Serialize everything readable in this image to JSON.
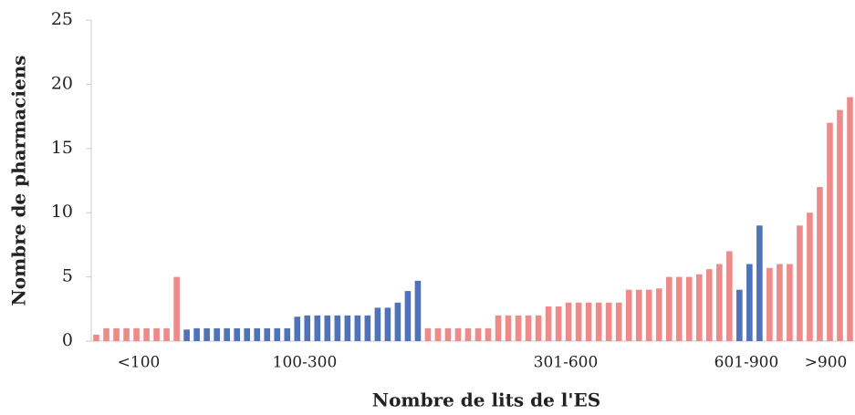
{
  "chart_data": {
    "type": "bar",
    "x_label": "Nombre de lits de l'ES",
    "y_label": "Nombre de pharmaciens",
    "group_labels": [
      "<100",
      "100-300",
      "301-600",
      "601-900",
      ">900"
    ],
    "values": [
      0.5,
      1,
      1,
      1,
      1,
      1,
      1,
      1,
      5,
      0.9,
      1,
      1,
      1,
      1,
      1,
      1,
      1,
      1,
      1,
      1,
      1.9,
      2,
      2,
      2,
      2,
      2,
      2,
      2,
      2.6,
      2.6,
      3,
      3.9,
      4.7,
      1,
      1,
      1,
      1,
      1,
      1,
      1,
      2,
      2,
      2,
      2,
      2,
      2.7,
      2.7,
      3,
      3,
      3,
      3,
      3,
      3,
      4,
      4,
      4,
      4.1,
      5,
      5,
      5,
      5.2,
      5.6,
      6,
      7,
      4,
      6,
      9,
      5.7,
      6,
      6,
      9,
      10,
      12,
      17,
      18,
      19
    ],
    "colors": [
      "#ec8b8a",
      "#ec8b8a",
      "#ec8b8a",
      "#ec8b8a",
      "#ec8b8a",
      "#ec8b8a",
      "#ec8b8a",
      "#ec8b8a",
      "#ec8b8a",
      "#4f72b8",
      "#4f72b8",
      "#4f72b8",
      "#4f72b8",
      "#4f72b8",
      "#4f72b8",
      "#4f72b8",
      "#4f72b8",
      "#4f72b8",
      "#4f72b8",
      "#4f72b8",
      "#4f72b8",
      "#4f72b8",
      "#4f72b8",
      "#4f72b8",
      "#4f72b8",
      "#4f72b8",
      "#4f72b8",
      "#4f72b8",
      "#4f72b8",
      "#4f72b8",
      "#4f72b8",
      "#4f72b8",
      "#4f72b8",
      "#ec8b8a",
      "#ec8b8a",
      "#ec8b8a",
      "#ec8b8a",
      "#ec8b8a",
      "#ec8b8a",
      "#ec8b8a",
      "#ec8b8a",
      "#ec8b8a",
      "#ec8b8a",
      "#ec8b8a",
      "#ec8b8a",
      "#ec8b8a",
      "#ec8b8a",
      "#ec8b8a",
      "#ec8b8a",
      "#ec8b8a",
      "#ec8b8a",
      "#ec8b8a",
      "#ec8b8a",
      "#ec8b8a",
      "#ec8b8a",
      "#ec8b8a",
      "#ec8b8a",
      "#ec8b8a",
      "#ec8b8a",
      "#ec8b8a",
      "#ec8b8a",
      "#ec8b8a",
      "#ec8b8a",
      "#ec8b8a",
      "#4f72b8",
      "#4f72b8",
      "#4f72b8",
      "#ec8b8a",
      "#ec8b8a",
      "#ec8b8a",
      "#ec8b8a",
      "#ec8b8a",
      "#ec8b8a",
      "#ec8b8a",
      "#ec8b8a",
      "#ec8b8a"
    ],
    "ylim": [
      0,
      25
    ],
    "yticks": [
      0,
      5,
      10,
      15,
      20,
      25
    ],
    "grid": false
  }
}
